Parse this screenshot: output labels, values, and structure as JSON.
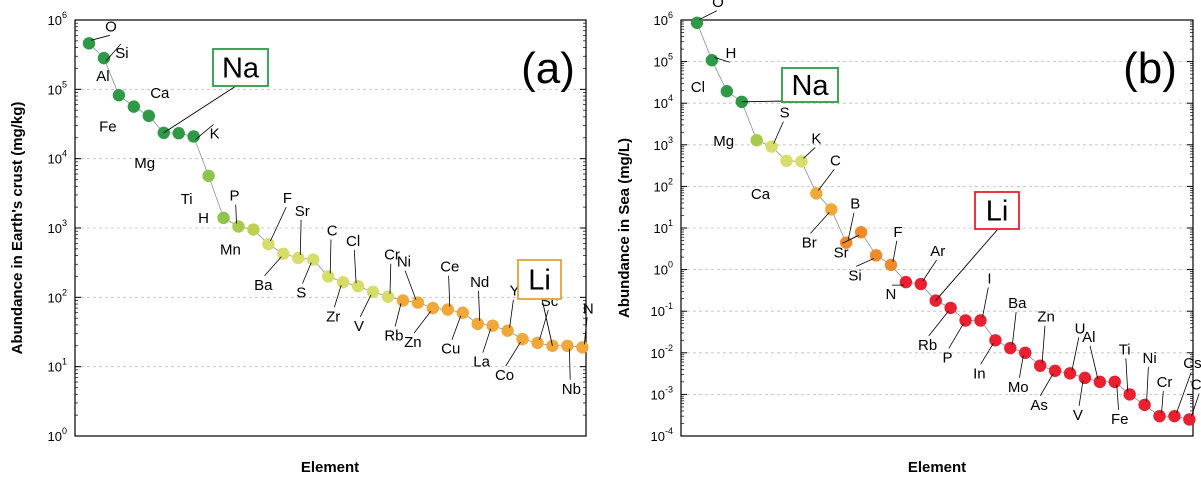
{
  "chart_data": [
    {
      "type": "scatter",
      "panel_label": "(a)",
      "xlabel": "Element",
      "ylabel": "Abundance in Earth's crust (mg/kg)",
      "ylim_log10": [
        0,
        6
      ],
      "yscale": "log",
      "y_ticks": [
        {
          "base": "10",
          "exp": "0"
        },
        {
          "base": "10",
          "exp": "1"
        },
        {
          "base": "10",
          "exp": "2"
        },
        {
          "base": "10",
          "exp": "3"
        },
        {
          "base": "10",
          "exp": "4"
        },
        {
          "base": "10",
          "exp": "5"
        },
        {
          "base": "10",
          "exp": "6"
        }
      ],
      "grid": "horizontal dashed",
      "points": [
        {
          "label": "O",
          "y": 461000,
          "color": "#2e9a48"
        },
        {
          "label": "Si",
          "y": 282000,
          "color": "#2e9a48"
        },
        {
          "label": "Al",
          "y": 82300,
          "color": "#2e9a48"
        },
        {
          "label": "Fe",
          "y": 56300,
          "color": "#2e9a48"
        },
        {
          "label": "Ca",
          "y": 41500,
          "color": "#2e9a48"
        },
        {
          "label": "Na",
          "y": 23600,
          "color": "#2e9a48"
        },
        {
          "label": "Mg",
          "y": 23300,
          "color": "#2e9a48"
        },
        {
          "label": "K",
          "y": 20900,
          "color": "#2e9a48"
        },
        {
          "label": "Ti",
          "y": 5650,
          "color": "#8ec44c"
        },
        {
          "label": "H",
          "y": 1400,
          "color": "#8ec44c"
        },
        {
          "label": "P",
          "y": 1050,
          "color": "#a8c94c"
        },
        {
          "label": "Mn",
          "y": 950,
          "color": "#bdd050"
        },
        {
          "label": "F",
          "y": 585,
          "color": "#d7dd6a"
        },
        {
          "label": "Ba",
          "y": 425,
          "color": "#d7dd6a"
        },
        {
          "label": "Sr",
          "y": 370,
          "color": "#d7dd6a"
        },
        {
          "label": "S",
          "y": 350,
          "color": "#d7dd6a"
        },
        {
          "label": "C",
          "y": 200,
          "color": "#d7dd6a"
        },
        {
          "label": "Zr",
          "y": 165,
          "color": "#d7dd6a"
        },
        {
          "label": "Cl",
          "y": 145,
          "color": "#d7dd6a"
        },
        {
          "label": "V",
          "y": 120,
          "color": "#d7dd6a"
        },
        {
          "label": "Cr",
          "y": 102,
          "color": "#d7dd6a"
        },
        {
          "label": "Rb",
          "y": 90,
          "color": "#f0a83a"
        },
        {
          "label": "Ni",
          "y": 84,
          "color": "#f0a83a"
        },
        {
          "label": "Zn",
          "y": 70,
          "color": "#f0a83a"
        },
        {
          "label": "Ce",
          "y": 66.5,
          "color": "#f0a83a"
        },
        {
          "label": "Cu",
          "y": 60,
          "color": "#f0a83a"
        },
        {
          "label": "Nd",
          "y": 41.5,
          "color": "#f0a83a"
        },
        {
          "label": "La",
          "y": 39,
          "color": "#f0a83a"
        },
        {
          "label": "Y",
          "y": 33,
          "color": "#f0a83a"
        },
        {
          "label": "Co",
          "y": 25,
          "color": "#f0a83a"
        },
        {
          "label": "Sc",
          "y": 22,
          "color": "#f0a83a"
        },
        {
          "label": "Li",
          "y": 20,
          "color": "#f0a83a"
        },
        {
          "label": "Nb",
          "y": 20,
          "color": "#f0a83a"
        },
        {
          "label": "N",
          "y": 19,
          "color": "#f0a83a"
        }
      ],
      "highlights": [
        {
          "label": "Na",
          "color": "#2e9a48"
        },
        {
          "label": "Li",
          "color": "#e0a43a"
        }
      ]
    },
    {
      "type": "scatter",
      "panel_label": "(b)",
      "xlabel": "Element",
      "ylabel": "Abundance in Sea (mg/L)",
      "ylim_log10": [
        -4,
        6
      ],
      "yscale": "log",
      "y_ticks": [
        {
          "base": "10",
          "exp": "-4"
        },
        {
          "base": "10",
          "exp": "-3"
        },
        {
          "base": "10",
          "exp": "-2"
        },
        {
          "base": "10",
          "exp": "-1"
        },
        {
          "base": "10",
          "exp": "0"
        },
        {
          "base": "10",
          "exp": "1"
        },
        {
          "base": "10",
          "exp": "2"
        },
        {
          "base": "10",
          "exp": "3"
        },
        {
          "base": "10",
          "exp": "4"
        },
        {
          "base": "10",
          "exp": "5"
        },
        {
          "base": "10",
          "exp": "6"
        }
      ],
      "grid": "horizontal dashed",
      "points": [
        {
          "label": "O",
          "y": 857000,
          "color": "#2e9a48"
        },
        {
          "label": "H",
          "y": 108000,
          "color": "#2e9a48"
        },
        {
          "label": "Cl",
          "y": 19400,
          "color": "#2e9a48"
        },
        {
          "label": "Na",
          "y": 10800,
          "color": "#2e9a48"
        },
        {
          "label": "Mg",
          "y": 1290,
          "color": "#a8c94c"
        },
        {
          "label": "S",
          "y": 905,
          "color": "#d7dd6a"
        },
        {
          "label": "Ca",
          "y": 411,
          "color": "#d7dd6a"
        },
        {
          "label": "K",
          "y": 399,
          "color": "#d7dd6a"
        },
        {
          "label": "C",
          "y": 68,
          "color": "#f0a83a"
        },
        {
          "label": "Br",
          "y": 28,
          "color": "#f0a83a"
        },
        {
          "label": "B",
          "y": 4.44,
          "color": "#ef8a2a"
        },
        {
          "label": "Sr",
          "y": 7.9,
          "color": "#ef8a2a"
        },
        {
          "label": "Si",
          "y": 2.2,
          "color": "#ef8a2a"
        },
        {
          "label": "F",
          "y": 1.3,
          "color": "#ef8a2a"
        },
        {
          "label": "N",
          "y": 0.5,
          "color": "#e8202f"
        },
        {
          "label": "Ar",
          "y": 0.45,
          "color": "#e8202f"
        },
        {
          "label": "Li",
          "y": 0.18,
          "color": "#e8202f"
        },
        {
          "label": "Rb",
          "y": 0.12,
          "color": "#e8202f"
        },
        {
          "label": "P",
          "y": 0.06,
          "color": "#e8202f"
        },
        {
          "label": "I",
          "y": 0.06,
          "color": "#e8202f"
        },
        {
          "label": "In",
          "y": 0.02,
          "color": "#e8202f"
        },
        {
          "label": "Ba",
          "y": 0.013,
          "color": "#e8202f"
        },
        {
          "label": "Mo",
          "y": 0.01,
          "color": "#e8202f"
        },
        {
          "label": "Zn",
          "y": 0.0049,
          "color": "#e8202f"
        },
        {
          "label": "As",
          "y": 0.0037,
          "color": "#e8202f"
        },
        {
          "label": "U",
          "y": 0.0032,
          "color": "#e8202f"
        },
        {
          "label": "V",
          "y": 0.0025,
          "color": "#e8202f"
        },
        {
          "label": "Al",
          "y": 0.002,
          "color": "#e8202f"
        },
        {
          "label": "Fe",
          "y": 0.002,
          "color": "#e8202f"
        },
        {
          "label": "Ti",
          "y": 0.001,
          "color": "#e8202f"
        },
        {
          "label": "Ni",
          "y": 0.00056,
          "color": "#e8202f"
        },
        {
          "label": "Cr",
          "y": 0.0003,
          "color": "#e8202f"
        },
        {
          "label": "Cs",
          "y": 0.0003,
          "color": "#e8202f"
        },
        {
          "label": "Cu",
          "y": 0.00025,
          "color": "#e8202f"
        }
      ],
      "highlights": [
        {
          "label": "Na",
          "color": "#2e9a48"
        },
        {
          "label": "Li",
          "color": "#e8202f"
        }
      ]
    }
  ]
}
